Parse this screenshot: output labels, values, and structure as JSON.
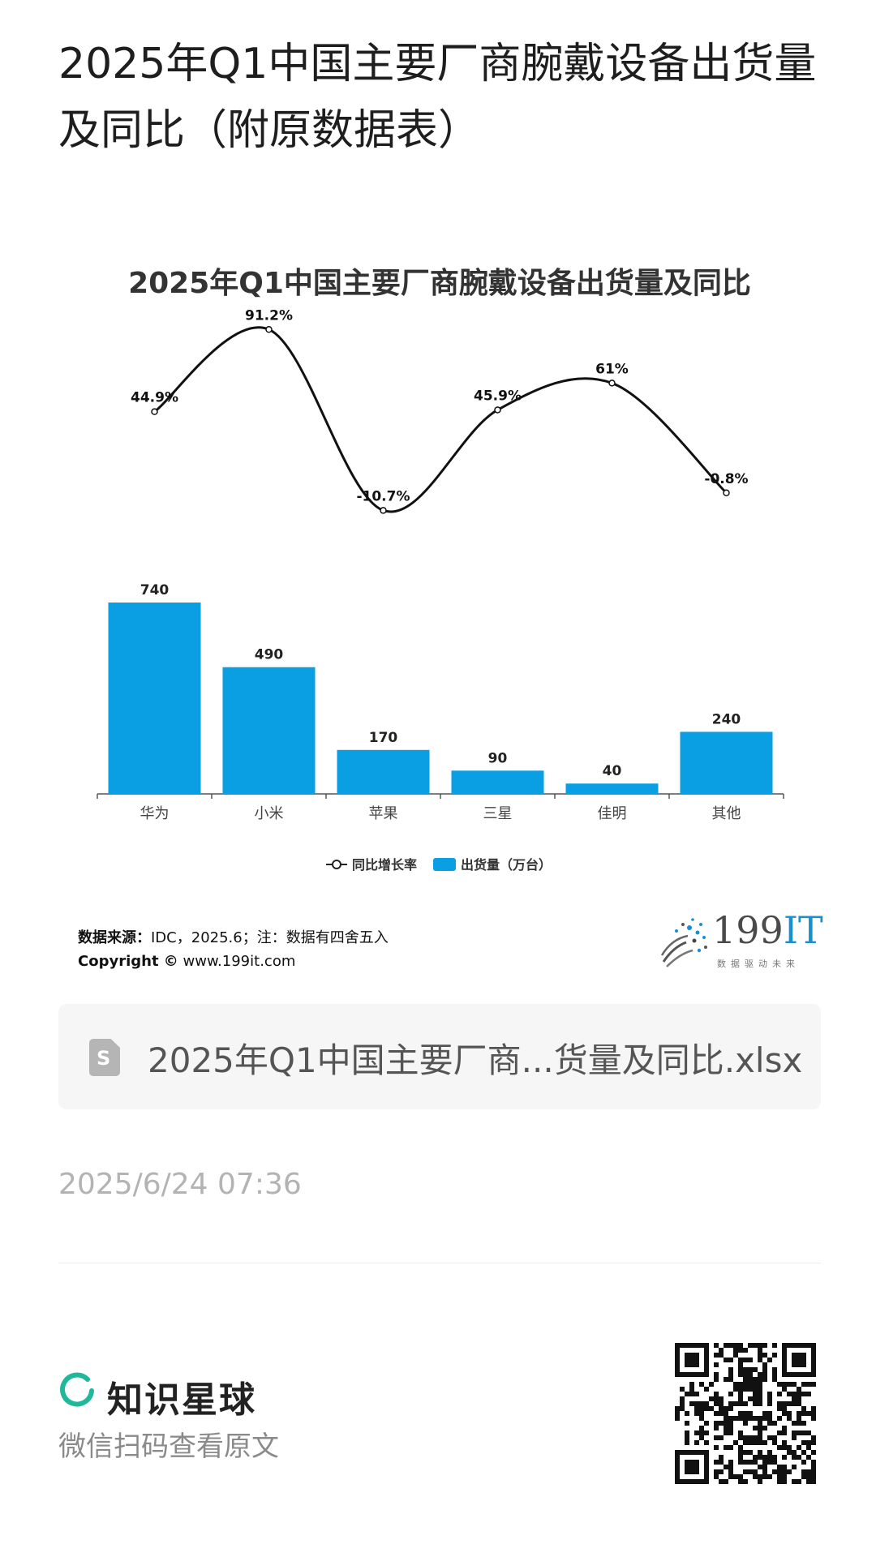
{
  "article": {
    "title": "2025年Q1中国主要厂商腕戴设备出货量及同比（附原数据表）"
  },
  "chart_data": {
    "type": "bar+line",
    "title": "2025年Q1中国主要厂商腕戴设备出货量及同比",
    "categories": [
      "华为",
      "小米",
      "苹果",
      "三星",
      "佳明",
      "其他"
    ],
    "series": [
      {
        "name": "出货量（万台）",
        "type": "bar",
        "values": [
          740,
          490,
          170,
          90,
          40,
          240
        ],
        "labels": [
          "740",
          "490",
          "170",
          "90",
          "40",
          "240"
        ],
        "color": "#0a9ee3"
      },
      {
        "name": "同比增长率",
        "type": "line",
        "values": [
          44.9,
          91.2,
          -10.7,
          45.9,
          61,
          -0.8
        ],
        "labels": [
          "44.9%",
          "91.2%",
          "-10.7%",
          "45.9%",
          "61%",
          "-0.8%"
        ],
        "color": "#111111"
      }
    ],
    "legend_position": "bottom",
    "grid": false
  },
  "source": {
    "label": "数据来源：",
    "text": "IDC，2025.6；注：数据有四舍五入",
    "copyright_label": "Copyright ©",
    "copyright_url": "www.199it.com"
  },
  "logo": {
    "main": "199",
    "accent": "IT",
    "tagline": "数据驱动未来"
  },
  "attachment": {
    "name": "2025年Q1中国主要厂商...货量及同比.xlsx",
    "icon": "spreadsheet-file-icon"
  },
  "meta": {
    "timestamp": "2025/6/24 07:36"
  },
  "footer": {
    "brand": "知识星球",
    "hint": "微信扫码查看原文",
    "brand_color": "#1fb89a"
  }
}
